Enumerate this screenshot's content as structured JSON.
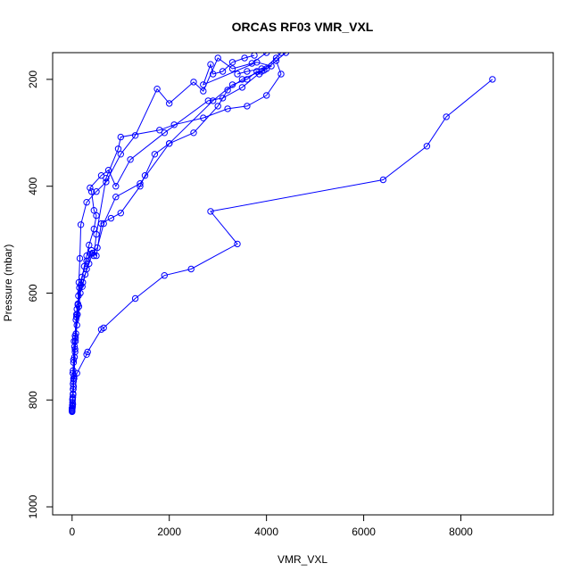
{
  "chart_data": {
    "type": "line",
    "title": "ORCAS RF03 VMR_VXL",
    "xlabel": "VMR_VXL",
    "ylabel": "Pressure (mbar)",
    "xlim": [
      -400,
      9900
    ],
    "ylim": [
      1015,
      150
    ],
    "y_reversed": true,
    "x_ticks": [
      0,
      2000,
      4000,
      6000,
      8000
    ],
    "y_ticks": [
      200,
      400,
      600,
      800,
      1000
    ],
    "grid": false,
    "legend": "none",
    "color": "#0000ff",
    "series": [
      {
        "points": [
          [
            0,
            820
          ],
          [
            5,
            815
          ],
          [
            10,
            805
          ],
          [
            15,
            795
          ],
          [
            20,
            780
          ],
          [
            30,
            760
          ],
          [
            20,
            745
          ],
          [
            30,
            725
          ],
          [
            40,
            690
          ],
          [
            60,
            680
          ],
          [
            80,
            650
          ],
          [
            100,
            630
          ],
          [
            120,
            620
          ],
          [
            150,
            590
          ],
          [
            200,
            570
          ],
          [
            300,
            540
          ],
          [
            400,
            520
          ],
          [
            500,
            530
          ],
          [
            600,
            470
          ],
          [
            800,
            460
          ],
          [
            1000,
            450
          ],
          [
            1400,
            400
          ],
          [
            1500,
            380
          ],
          [
            1700,
            340
          ],
          [
            2000,
            320
          ],
          [
            2500,
            300
          ],
          [
            3000,
            250
          ],
          [
            3200,
            220
          ],
          [
            3500,
            200
          ],
          [
            4000,
            180
          ],
          [
            4400,
            150
          ]
        ]
      },
      {
        "points": [
          [
            0,
            818
          ],
          [
            5,
            810
          ],
          [
            10,
            798
          ],
          [
            20,
            770
          ],
          [
            15,
            750
          ],
          [
            30,
            730
          ],
          [
            50,
            700
          ],
          [
            70,
            684
          ],
          [
            90,
            640
          ],
          [
            120,
            622
          ],
          [
            180,
            585
          ],
          [
            250,
            550
          ],
          [
            300,
            530
          ],
          [
            350,
            510
          ],
          [
            450,
            480
          ],
          [
            500,
            455
          ],
          [
            450,
            445
          ],
          [
            400,
            410
          ],
          [
            370,
            403
          ],
          [
            600,
            380
          ],
          [
            750,
            370
          ],
          [
            900,
            400
          ],
          [
            1200,
            350
          ],
          [
            1900,
            300
          ],
          [
            2800,
            240
          ],
          [
            3100,
            235
          ],
          [
            3500,
            215
          ],
          [
            3900,
            185
          ],
          [
            4200,
            160
          ]
        ]
      },
      {
        "points": [
          [
            0,
            815
          ],
          [
            10,
            800
          ],
          [
            25,
            780
          ],
          [
            40,
            760
          ],
          [
            100,
            750
          ],
          [
            300,
            715
          ],
          [
            320,
            710
          ],
          [
            600,
            668
          ],
          [
            650,
            665
          ],
          [
            1300,
            610
          ],
          [
            1900,
            567
          ],
          [
            2450,
            555
          ],
          [
            3400,
            508
          ],
          [
            2850,
            447
          ],
          [
            6400,
            388
          ],
          [
            7300,
            325
          ],
          [
            7700,
            270
          ],
          [
            8650,
            200
          ]
        ]
      },
      {
        "points": [
          [
            0,
            822
          ],
          [
            10,
            812
          ],
          [
            20,
            790
          ],
          [
            30,
            765
          ],
          [
            50,
            720
          ],
          [
            70,
            690
          ],
          [
            100,
            660
          ],
          [
            140,
            625
          ],
          [
            170,
            600
          ],
          [
            220,
            580
          ],
          [
            300,
            555
          ],
          [
            380,
            527
          ],
          [
            450,
            530
          ],
          [
            500,
            490
          ],
          [
            700,
            385
          ],
          [
            950,
            330
          ],
          [
            1000,
            308
          ],
          [
            1800,
            295
          ],
          [
            2100,
            285
          ],
          [
            2700,
            272
          ],
          [
            3200,
            255
          ],
          [
            3600,
            250
          ],
          [
            4000,
            230
          ],
          [
            4300,
            190
          ],
          [
            4200,
            165
          ]
        ]
      },
      {
        "points": [
          [
            0,
            820
          ],
          [
            15,
            808
          ],
          [
            30,
            775
          ],
          [
            60,
            710
          ],
          [
            80,
            676
          ],
          [
            110,
            640
          ],
          [
            140,
            580
          ],
          [
            160,
            535
          ],
          [
            180,
            472
          ],
          [
            300,
            430
          ],
          [
            500,
            410
          ],
          [
            700,
            392
          ],
          [
            1000,
            340
          ],
          [
            1300,
            305
          ],
          [
            1750,
            218
          ],
          [
            2000,
            245
          ],
          [
            2500,
            205
          ],
          [
            2700,
            222
          ],
          [
            3000,
            160
          ],
          [
            3300,
            180
          ],
          [
            3700,
            170
          ],
          [
            4000,
            150
          ]
        ]
      },
      {
        "points": [
          [
            0,
            816
          ],
          [
            20,
            788
          ],
          [
            40,
            755
          ],
          [
            60,
            705
          ],
          [
            90,
            645
          ],
          [
            130,
            605
          ],
          [
            210,
            588
          ],
          [
            270,
            565
          ],
          [
            350,
            545
          ],
          [
            420,
            525
          ],
          [
            520,
            515
          ],
          [
            650,
            470
          ],
          [
            900,
            420
          ],
          [
            1400,
            395
          ],
          [
            2000,
            320
          ],
          [
            2900,
            240
          ],
          [
            3300,
            210
          ],
          [
            3600,
            200
          ],
          [
            3800,
            185
          ],
          [
            3850,
            190
          ],
          [
            4300,
            150
          ]
        ]
      },
      {
        "points": [
          [
            3400,
            190
          ],
          [
            3600,
            185
          ],
          [
            3900,
            180
          ],
          [
            3950,
            183
          ],
          [
            4100,
            175
          ],
          [
            3800,
            168
          ],
          [
            2700,
            210
          ],
          [
            2850,
            172
          ],
          [
            2900,
            190
          ],
          [
            3100,
            185
          ],
          [
            3300,
            168
          ],
          [
            3550,
            160
          ],
          [
            3750,
            155
          ]
        ]
      }
    ]
  }
}
